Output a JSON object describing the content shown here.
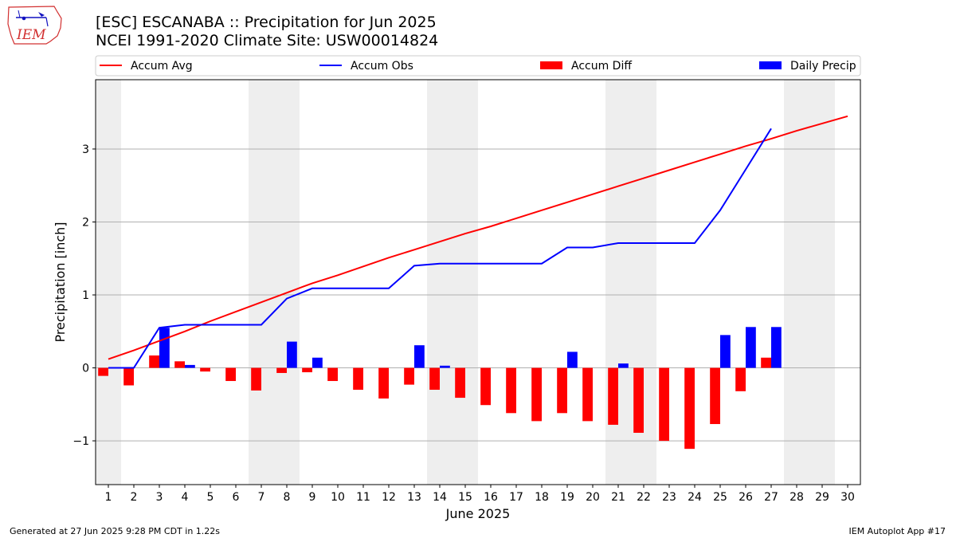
{
  "header": {
    "title_line1": "[ESC] ESCANABA :: Precipitation for Jun 2025",
    "title_line2": "NCEI 1991-2020 Climate Site: USW00014824",
    "logo_text": "IEM"
  },
  "footer": {
    "generated": "Generated at 27 Jun 2025 9:28 PM CDT in 1.22s",
    "app": "IEM Autoplot App #17"
  },
  "chart_data": {
    "type": "bar",
    "xlabel": "June 2025",
    "ylabel": "Precipitation [inch]",
    "xlim": [
      0.5,
      30.5
    ],
    "ylim": [
      -1.6,
      3.95
    ],
    "yticks": [
      -1,
      0,
      1,
      2,
      3
    ],
    "ytick_labels": [
      "−1",
      "0",
      "1",
      "2",
      "3"
    ],
    "days": [
      1,
      2,
      3,
      4,
      5,
      6,
      7,
      8,
      9,
      10,
      11,
      12,
      13,
      14,
      15,
      16,
      17,
      18,
      19,
      20,
      21,
      22,
      23,
      24,
      25,
      26,
      27,
      28,
      29,
      30
    ],
    "weekend_shading_days": [
      1,
      7,
      8,
      14,
      15,
      21,
      22,
      28,
      29
    ],
    "grid": "horizontal",
    "legend_position": "top",
    "colors": {
      "avg": "#ff0000",
      "obs": "#0000ff",
      "diff": "#ff0000",
      "daily": "#0000ff",
      "weekend": "#eeeeee"
    },
    "series": [
      {
        "name": "Accum Avg",
        "kind": "line",
        "values": [
          0.12,
          0.24,
          0.37,
          0.5,
          0.64,
          0.77,
          0.9,
          1.03,
          1.16,
          1.27,
          1.39,
          1.51,
          1.62,
          1.73,
          1.84,
          1.94,
          2.05,
          2.16,
          2.27,
          2.38,
          2.49,
          2.6,
          2.71,
          2.82,
          2.93,
          3.04,
          3.14,
          3.25,
          3.35,
          3.45
        ]
      },
      {
        "name": "Accum Obs",
        "kind": "line",
        "values": [
          0.0,
          0.0,
          0.55,
          0.59,
          0.59,
          0.59,
          0.59,
          0.95,
          1.09,
          1.09,
          1.09,
          1.09,
          1.4,
          1.43,
          1.43,
          1.43,
          1.43,
          1.43,
          1.65,
          1.65,
          1.71,
          1.71,
          1.71,
          1.71,
          2.16,
          2.72,
          3.28
        ]
      },
      {
        "name": "Accum Diff",
        "kind": "bar",
        "values": [
          -0.11,
          -0.24,
          0.17,
          0.09,
          -0.05,
          -0.18,
          -0.31,
          -0.07,
          -0.06,
          -0.18,
          -0.3,
          -0.42,
          -0.23,
          -0.3,
          -0.41,
          -0.51,
          -0.62,
          -0.73,
          -0.62,
          -0.73,
          -0.78,
          -0.89,
          -1.0,
          -1.11,
          -0.77,
          -0.32,
          0.14
        ]
      },
      {
        "name": "Daily Precip",
        "kind": "bar",
        "values": [
          0.0,
          0.0,
          0.55,
          0.04,
          0.0,
          0.0,
          0.0,
          0.36,
          0.14,
          0.0,
          0.0,
          0.0,
          0.31,
          0.03,
          0.0,
          0.0,
          0.0,
          0.0,
          0.22,
          0.0,
          0.06,
          0.0,
          0.0,
          0.0,
          0.45,
          0.56,
          0.56
        ]
      }
    ]
  }
}
